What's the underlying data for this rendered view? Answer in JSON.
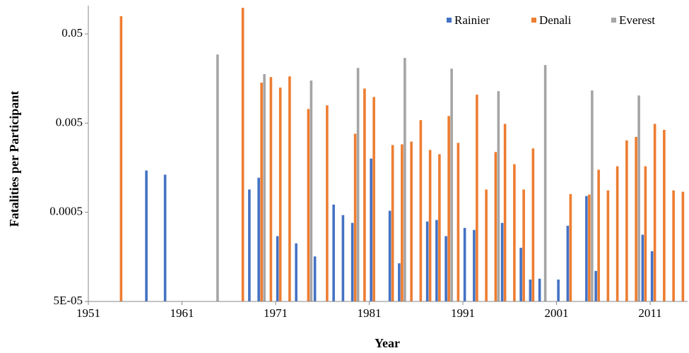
{
  "chart_data": {
    "type": "bar",
    "x_label": "Year",
    "y_label": "Fatalities per Participant",
    "log_scale": true,
    "grid": false,
    "legend": "top-right",
    "categories": [
      "1951",
      null,
      null,
      null,
      null,
      null,
      null,
      null,
      null,
      null,
      "1961",
      null,
      null,
      null,
      null,
      null,
      null,
      null,
      null,
      null,
      "1971",
      null,
      null,
      null,
      null,
      null,
      null,
      null,
      null,
      null,
      "1981",
      null,
      null,
      null,
      null,
      null,
      null,
      null,
      null,
      null,
      "1991",
      null,
      null,
      null,
      null,
      null,
      null,
      null,
      null,
      null,
      "2001",
      null,
      null,
      null,
      null,
      null,
      null,
      null,
      null,
      null,
      "2011",
      null,
      null,
      null
    ],
    "ylim": [
      5e-05,
      0.1
    ],
    "yticks": [
      {
        "value": 5e-05,
        "label": "5E-05"
      },
      0.0005,
      0.005,
      0.05
    ],
    "series": [
      {
        "name": "Rainier",
        "color": "#4472c4",
        "values": [
          null,
          null,
          null,
          null,
          null,
          null,
          0.00147,
          null,
          0.00132,
          null,
          null,
          null,
          null,
          null,
          null,
          null,
          null,
          0.0009,
          0.00122,
          null,
          0.00027,
          null,
          0.000224,
          null,
          0.00016,
          null,
          0.00061,
          0.000465,
          0.00038,
          null,
          0.002,
          null,
          0.00052,
          0.000134,
          null,
          null,
          0.000394,
          0.00041,
          0.00027,
          null,
          0.000334,
          0.000317,
          null,
          null,
          0.00038,
          null,
          0.0002,
          8.8e-05,
          9e-05,
          null,
          8.8e-05,
          0.000353,
          null,
          0.00076,
          0.00011,
          null,
          null,
          null,
          null,
          0.00028,
          0.000183,
          null,
          null,
          null
        ]
      },
      {
        "name": "Denali",
        "color": "#ed7d31",
        "values": [
          null,
          null,
          null,
          0.079,
          null,
          null,
          null,
          null,
          null,
          null,
          null,
          null,
          null,
          null,
          null,
          null,
          0.098,
          null,
          0.0142,
          0.0164,
          0.0125,
          0.0167,
          null,
          0.0072,
          null,
          0.0079,
          null,
          null,
          0.0038,
          0.0122,
          0.0098,
          null,
          0.00284,
          0.00289,
          0.0031,
          0.0054,
          0.0025,
          0.00224,
          0.006,
          0.003,
          null,
          0.0104,
          0.0009,
          0.00237,
          0.0049,
          0.00173,
          0.0009,
          0.0026,
          null,
          null,
          null,
          0.0008,
          null,
          0.00079,
          0.0015,
          0.00088,
          0.00164,
          0.0032,
          0.0035,
          0.00164,
          0.0049,
          0.0042,
          0.00088,
          0.00085
        ]
      },
      {
        "name": "Everest",
        "color": "#a5a5a5",
        "values": [
          null,
          null,
          null,
          null,
          null,
          null,
          null,
          null,
          null,
          null,
          null,
          null,
          null,
          0.0294,
          null,
          null,
          null,
          null,
          0.0177,
          null,
          null,
          null,
          null,
          0.015,
          null,
          null,
          null,
          null,
          0.0208,
          null,
          null,
          null,
          null,
          0.0269,
          null,
          null,
          null,
          null,
          0.0204,
          null,
          null,
          null,
          null,
          0.0114,
          null,
          null,
          null,
          null,
          0.0224,
          null,
          null,
          null,
          null,
          0.0116,
          null,
          null,
          null,
          null,
          0.0102,
          null,
          null,
          null,
          null,
          null
        ]
      }
    ]
  }
}
